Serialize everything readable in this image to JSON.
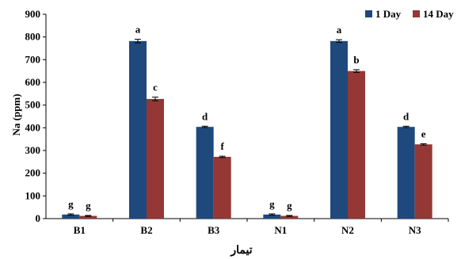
{
  "chart_data": {
    "type": "bar",
    "categories": [
      "B1",
      "B2",
      "B3",
      "N1",
      "N2",
      "N3"
    ],
    "series": [
      {
        "name": "1 Day",
        "color": "#1f497d",
        "values": [
          18,
          782,
          404,
          18,
          782,
          404
        ],
        "errors": [
          3,
          8,
          3,
          3,
          6,
          3
        ],
        "letters": [
          "g",
          "a",
          "d",
          "g",
          "a",
          "d"
        ]
      },
      {
        "name": "14 Day",
        "color": "#953735",
        "values": [
          12,
          527,
          272,
          12,
          650,
          327
        ],
        "errors": [
          2,
          8,
          3,
          2,
          6,
          3
        ],
        "letters": [
          "g",
          "c",
          "f",
          "g",
          "b",
          "e"
        ]
      }
    ],
    "ylabel": "Na (ppm)",
    "xlabel": "تیمار",
    "ylim": [
      0,
      900
    ],
    "yticks": [
      0,
      100,
      200,
      300,
      400,
      500,
      600,
      700,
      800,
      900
    ],
    "legend_position": "top-right",
    "grid": false
  }
}
